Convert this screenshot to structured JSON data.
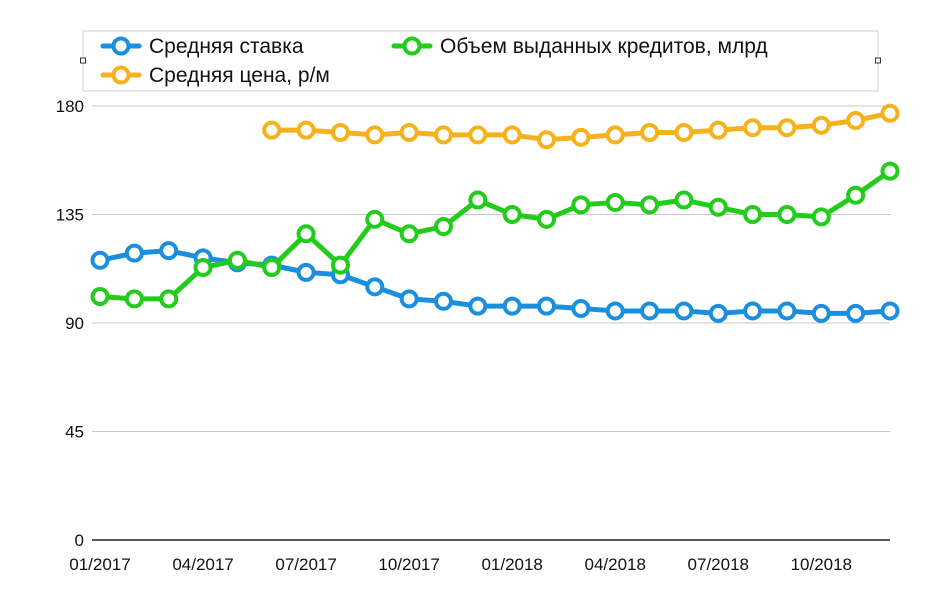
{
  "chart_data": {
    "type": "line",
    "title": "",
    "xlabel": "",
    "ylabel": "",
    "ylim": [
      0,
      180
    ],
    "yticks": [
      0,
      45,
      90,
      135,
      180
    ],
    "x": [
      "01/2017",
      "02/2017",
      "03/2017",
      "04/2017",
      "05/2017",
      "06/2017",
      "07/2017",
      "08/2017",
      "09/2017",
      "10/2017",
      "11/2017",
      "12/2017",
      "01/2018",
      "02/2018",
      "03/2018",
      "04/2018",
      "05/2018",
      "06/2018",
      "07/2018",
      "08/2018",
      "09/2018",
      "10/2018",
      "11/2018",
      "12/2018"
    ],
    "xtick_labels": [
      "01/2017",
      "04/2017",
      "07/2017",
      "10/2017",
      "01/2018",
      "04/2018",
      "07/2018",
      "10/2018"
    ],
    "xtick_indices": [
      0,
      3,
      6,
      9,
      12,
      15,
      18,
      21
    ],
    "grid": true,
    "legend_position": "top",
    "series": [
      {
        "name": "Средняя ставка",
        "color": "#1a8fe0",
        "values": [
          116,
          119,
          120,
          117,
          115,
          114,
          111,
          110,
          105,
          100,
          99,
          97,
          97,
          97,
          96,
          95,
          95,
          95,
          94,
          95,
          95,
          94,
          94,
          95
        ]
      },
      {
        "name": "Объем выданных кредитов, млрд",
        "color": "#22cc1a",
        "values": [
          101,
          100,
          100,
          113,
          116,
          113,
          127,
          114,
          133,
          127,
          130,
          141,
          135,
          133,
          139,
          140,
          139,
          141,
          138,
          135,
          135,
          134,
          143,
          153
        ]
      },
      {
        "name": "Средняя цена, р/м",
        "color": "#f5b21c",
        "values": [
          null,
          null,
          null,
          null,
          null,
          170,
          170,
          169,
          168,
          169,
          168,
          168,
          168,
          166,
          167,
          168,
          169,
          169,
          170,
          171,
          171,
          172,
          174,
          177
        ]
      }
    ]
  },
  "legend": {
    "items": [
      "Средняя ставка",
      "Объем выданных кредитов, млрд",
      "Средняя цена, р/м"
    ]
  }
}
